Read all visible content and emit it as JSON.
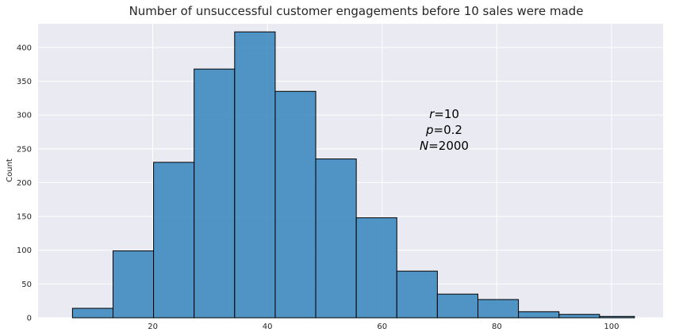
{
  "chart_data": {
    "type": "bar",
    "title": "Number of unsuccessful customer engagements before 10 sales were made",
    "xlabel": "",
    "ylabel": "Count",
    "xlim": [
      0,
      109
    ],
    "ylim": [
      0,
      435
    ],
    "x_ticks": [
      20,
      40,
      60,
      80,
      100
    ],
    "y_ticks": [
      0,
      50,
      100,
      150,
      200,
      250,
      300,
      350,
      400
    ],
    "grid": true,
    "bin_edges": [
      6,
      13.07,
      20.14,
      27.21,
      34.28,
      41.35,
      48.42,
      55.49,
      62.56,
      69.63,
      76.7,
      83.77,
      90.84,
      97.91,
      104
    ],
    "values": [
      14,
      99,
      230,
      368,
      423,
      335,
      235,
      148,
      69,
      35,
      27,
      9,
      5,
      2
    ],
    "colors": {
      "background": "#eaeaf2",
      "bar_fill": "#3f8bc1",
      "bar_edge": "#000000",
      "grid": "#ffffff"
    },
    "annotation": [
      {
        "var": "r",
        "value": "=10"
      },
      {
        "var": "p",
        "value": "=0.2"
      },
      {
        "var": "N",
        "value": "=2000"
      }
    ]
  }
}
